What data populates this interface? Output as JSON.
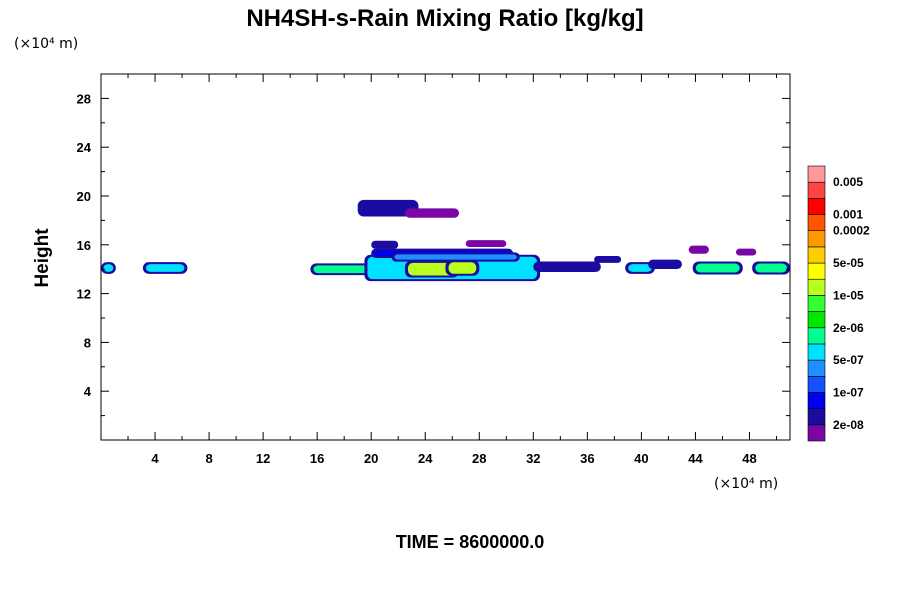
{
  "chart_data": {
    "type": "heatmap",
    "title": "NH4SH-s-Rain Mixing Ratio [kg/kg]",
    "x_unit_label": "(×10⁴ m)",
    "y_unit_label": "(×10⁴ m)",
    "ylabel": "Height",
    "xlabel": "",
    "xlim": [
      0,
      51
    ],
    "ylim": [
      0,
      30
    ],
    "x_ticks": [
      4,
      8,
      12,
      16,
      20,
      24,
      28,
      32,
      36,
      40,
      44,
      48
    ],
    "y_ticks": [
      4,
      8,
      12,
      16,
      20,
      24,
      28
    ],
    "time_label": "TIME = 8600000.0",
    "colorbar": {
      "colors": [
        "#7b06a6",
        "#1a0ca0",
        "#0000f0",
        "#1452ff",
        "#1e90ff",
        "#00e0ff",
        "#00ff90",
        "#00e800",
        "#33ff33",
        "#b8ff1e",
        "#ffff00",
        "#ffcc00",
        "#ff9900",
        "#ff5500",
        "#ff0000",
        "#ff4444",
        "#ff9999"
      ],
      "labels": [
        "2e-08",
        "1e-07",
        "5e-07",
        "2e-06",
        "1e-05",
        "5e-05",
        "0.0002",
        "0.001",
        "0.005"
      ]
    },
    "features": [
      {
        "x0": 0.0,
        "x1": 1.1,
        "yc": 14.1,
        "h": 0.8,
        "level": 5
      },
      {
        "x0": 3.1,
        "x1": 6.4,
        "yc": 14.1,
        "h": 0.8,
        "level": 5
      },
      {
        "x0": 15.5,
        "x1": 20.5,
        "yc": 14.0,
        "h": 0.8,
        "level": 6
      },
      {
        "x0": 19.5,
        "x1": 32.5,
        "yc": 14.1,
        "h": 2.0,
        "level": 5
      },
      {
        "x0": 22.5,
        "x1": 26.5,
        "yc": 14.0,
        "h": 1.2,
        "level": 9
      },
      {
        "x0": 25.5,
        "x1": 28.0,
        "yc": 14.1,
        "h": 1.1,
        "level": 9
      },
      {
        "x0": 20.0,
        "x1": 30.5,
        "yc": 15.3,
        "h": 0.6,
        "level": 2
      },
      {
        "x0": 21.5,
        "x1": 31.0,
        "yc": 15.0,
        "h": 0.6,
        "level": 4
      },
      {
        "x0": 32.0,
        "x1": 37.0,
        "yc": 14.2,
        "h": 0.7,
        "level": 1
      },
      {
        "x0": 38.8,
        "x1": 41.0,
        "yc": 14.1,
        "h": 0.8,
        "level": 5
      },
      {
        "x0": 40.5,
        "x1": 43.0,
        "yc": 14.4,
        "h": 0.6,
        "level": 1
      },
      {
        "x0": 43.8,
        "x1": 47.5,
        "yc": 14.1,
        "h": 0.9,
        "level": 6
      },
      {
        "x0": 48.2,
        "x1": 51.0,
        "yc": 14.1,
        "h": 0.9,
        "level": 6
      },
      {
        "x0": 19.0,
        "x1": 23.5,
        "yc": 19.0,
        "h": 1.2,
        "level": 1
      },
      {
        "x0": 22.5,
        "x1": 26.5,
        "yc": 18.6,
        "h": 0.6,
        "level": 0
      },
      {
        "x0": 20.0,
        "x1": 22.0,
        "yc": 16.0,
        "h": 0.5,
        "level": 1
      },
      {
        "x0": 27.0,
        "x1": 30.0,
        "yc": 16.1,
        "h": 0.4,
        "level": 0
      },
      {
        "x0": 36.5,
        "x1": 38.5,
        "yc": 14.8,
        "h": 0.4,
        "level": 1
      },
      {
        "x0": 43.5,
        "x1": 45.0,
        "yc": 15.6,
        "h": 0.5,
        "level": 0
      },
      {
        "x0": 47.0,
        "x1": 48.5,
        "yc": 15.4,
        "h": 0.4,
        "level": 0
      }
    ]
  }
}
